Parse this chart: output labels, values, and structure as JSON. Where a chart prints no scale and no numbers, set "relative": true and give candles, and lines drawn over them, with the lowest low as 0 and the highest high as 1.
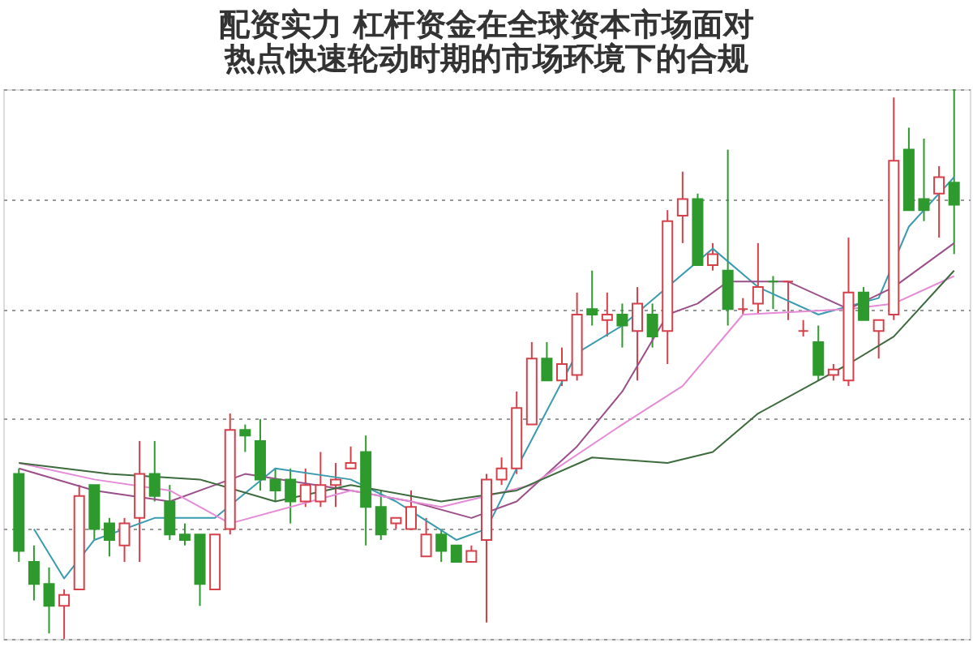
{
  "chart_data": {
    "type": "candlestick",
    "relative": true,
    "grid": "y",
    "title": "配资实力 杠杆资金在全球资本市场面对热点快速轮动时期的市场环境下的合规",
    "categories": [
      null,
      null,
      null,
      null,
      null,
      null,
      null,
      null,
      null,
      null,
      null,
      null,
      null,
      null,
      null,
      null,
      null,
      null,
      null,
      null,
      null,
      null,
      null,
      null,
      null,
      null,
      null,
      null,
      null,
      null,
      null,
      null,
      null,
      null,
      null,
      null,
      null,
      null,
      null,
      null,
      null,
      null,
      null,
      null,
      null,
      null,
      null,
      null,
      null,
      null,
      null,
      null,
      null,
      null,
      null,
      null,
      null,
      null,
      null,
      null,
      null,
      null,
      null
    ],
    "ohlc": [
      [
        0.3,
        0.31,
        0.14,
        0.16
      ],
      [
        0.14,
        0.17,
        0.07,
        0.1
      ],
      [
        0.1,
        0.13,
        0.01,
        0.06
      ],
      [
        0.06,
        0.09,
        0,
        0.08
      ],
      [
        0.09,
        0.28,
        0.09,
        0.26
      ],
      [
        0.28,
        0.28,
        0.18,
        0.2
      ],
      [
        0.21,
        0.22,
        0.15,
        0.18
      ],
      [
        0.17,
        0.22,
        0.14,
        0.21
      ],
      [
        0.22,
        0.36,
        0.14,
        0.3
      ],
      [
        0.3,
        0.36,
        0.25,
        0.26
      ],
      [
        0.25,
        0.28,
        0.18,
        0.19
      ],
      [
        0.19,
        0.21,
        0.17,
        0.18
      ],
      [
        0.19,
        0.19,
        0.06,
        0.1
      ],
      [
        0.09,
        0.19,
        0.09,
        0.19
      ],
      [
        0.2,
        0.41,
        0.19,
        0.38
      ],
      [
        0.38,
        0.39,
        0.34,
        0.37
      ],
      [
        0.36,
        0.4,
        0.27,
        0.29
      ],
      [
        0.29,
        0.31,
        0.25,
        0.27
      ],
      [
        0.29,
        0.31,
        0.21,
        0.25
      ],
      [
        0.25,
        0.31,
        0.24,
        0.28
      ],
      [
        0.25,
        0.34,
        0.24,
        0.28
      ],
      [
        0.28,
        0.32,
        0.24,
        0.29
      ],
      [
        0.31,
        0.35,
        0.31,
        0.32
      ],
      [
        0.34,
        0.37,
        0.17,
        0.24
      ],
      [
        0.24,
        0.27,
        0.18,
        0.19
      ],
      [
        0.21,
        0.22,
        0.2,
        0.22
      ],
      [
        0.2,
        0.27,
        0.2,
        0.24
      ],
      [
        0.15,
        0.22,
        0.15,
        0.19
      ],
      [
        0.19,
        0.2,
        0.14,
        0.16
      ],
      [
        0.17,
        0.17,
        0.14,
        0.14
      ],
      [
        0.14,
        0.17,
        0.14,
        0.16
      ],
      [
        0.18,
        0.3,
        0.03,
        0.29
      ],
      [
        0.29,
        0.33,
        0.28,
        0.31
      ],
      [
        0.31,
        0.45,
        0.3,
        0.42
      ],
      [
        0.39,
        0.54,
        0.39,
        0.51
      ],
      [
        0.51,
        0.54,
        0.47,
        0.47
      ],
      [
        0.47,
        0.53,
        0.46,
        0.5
      ],
      [
        0.48,
        0.63,
        0.47,
        0.59
      ],
      [
        0.6,
        0.67,
        0.57,
        0.59
      ],
      [
        0.58,
        0.63,
        0.55,
        0.59
      ],
      [
        0.59,
        0.61,
        0.53,
        0.57
      ],
      [
        0.56,
        0.64,
        0.47,
        0.61
      ],
      [
        0.59,
        0.61,
        0.53,
        0.55
      ],
      [
        0.56,
        0.78,
        0.5,
        0.76
      ],
      [
        0.77,
        0.85,
        0.72,
        0.8
      ],
      [
        0.8,
        0.81,
        0.68,
        0.68
      ],
      [
        0.68,
        0.72,
        0.67,
        0.7
      ],
      [
        0.67,
        0.89,
        0.57,
        0.6
      ],
      [
        0.6,
        0.62,
        0.59,
        0.6
      ],
      [
        0.61,
        0.72,
        0.59,
        0.64
      ],
      [
        0.65,
        0.66,
        0.6,
        0.65
      ],
      [
        0.65,
        0.65,
        0.58,
        0.65
      ],
      [
        0.56,
        0.58,
        0.55,
        0.56
      ],
      [
        0.54,
        0.57,
        0.47,
        0.48
      ],
      [
        0.48,
        0.5,
        0.47,
        0.49
      ],
      [
        0.47,
        0.73,
        0.46,
        0.63
      ],
      [
        0.63,
        0.64,
        0.58,
        0.58
      ],
      [
        0.56,
        0.58,
        0.51,
        0.58
      ],
      [
        0.59,
        0.985,
        0.58,
        0.87
      ],
      [
        0.89,
        0.93,
        0.78,
        0.78
      ],
      [
        0.8,
        0.91,
        0.76,
        0.78
      ],
      [
        0.81,
        0.86,
        0.73,
        0.84
      ],
      [
        0.83,
        1.0,
        0.7,
        0.79
      ]
    ],
    "colors": [
      "#2e9a2e",
      "#2e9a2e",
      "#2e9a2e",
      "#d6404a",
      "#d6404a",
      "#2e9a2e",
      "#2e9a2e",
      "#d6404a",
      "#d6404a",
      "#2e9a2e",
      "#2e9a2e",
      "#2e9a2e",
      "#2e9a2e",
      "#d6404a",
      "#d6404a",
      "#2e9a2e",
      "#2e9a2e",
      "#2e9a2e",
      "#2e9a2e",
      "#d6404a",
      "#d6404a",
      "#d6404a",
      "#d6404a",
      "#2e9a2e",
      "#2e9a2e",
      "#d6404a",
      "#d6404a",
      "#d6404a",
      "#2e9a2e",
      "#2e9a2e",
      "#d6404a",
      "#d6404a",
      "#d6404a",
      "#d6404a",
      "#d6404a",
      "#2e9a2e",
      "#d6404a",
      "#d6404a",
      "#2e9a2e",
      "#d6404a",
      "#2e9a2e",
      "#d6404a",
      "#2e9a2e",
      "#d6404a",
      "#d6404a",
      "#2e9a2e",
      "#d6404a",
      "#2e9a2e",
      "#d6404a",
      "#d6404a",
      "#2e9a2e",
      "#d6404a",
      "#d6404a",
      "#2e9a2e",
      "#d6404a",
      "#d6404a",
      "#2e9a2e",
      "#d6404a",
      "#d6404a",
      "#2e9a2e",
      "#2e9a2e",
      "#d6404a",
      "#2e9a2e"
    ],
    "series": [
      {
        "type": "line",
        "color": "#3a9bb0",
        "values": [
          null,
          0.2,
          null,
          0.11,
          null,
          0.18,
          null,
          null,
          null,
          0.22,
          null,
          null,
          null,
          0.22,
          null,
          null,
          null,
          0.31,
          null,
          null,
          null,
          null,
          0.29,
          null,
          null,
          0.25,
          null,
          null,
          null,
          0.18,
          null,
          0.2,
          null,
          0.31,
          null,
          null,
          null,
          0.52,
          null,
          null,
          0.57,
          null,
          null,
          0.64,
          null,
          null,
          0.71,
          null,
          null,
          0.64,
          null,
          null,
          null,
          0.59,
          null,
          null,
          null,
          0.62,
          null,
          0.75,
          null,
          null,
          0.84
        ]
      },
      {
        "type": "line",
        "color": "#9b4f8a",
        "values": [
          0.31,
          null,
          null,
          null,
          null,
          0.27,
          null,
          null,
          null,
          null,
          0.25,
          null,
          null,
          null,
          null,
          0.3,
          null,
          null,
          null,
          null,
          null,
          null,
          0.27,
          null,
          null,
          null,
          0.25,
          null,
          null,
          null,
          0.22,
          null,
          null,
          0.25,
          null,
          null,
          null,
          0.35,
          null,
          null,
          0.45,
          null,
          null,
          0.59,
          null,
          0.61,
          null,
          0.65,
          null,
          null,
          null,
          0.65,
          null,
          null,
          null,
          0.6,
          null,
          null,
          0.64,
          null,
          null,
          null,
          0.72
        ]
      },
      {
        "type": "line",
        "color": "#e58ad6",
        "values": [
          0.32,
          null,
          null,
          null,
          null,
          0.29,
          null,
          null,
          null,
          null,
          0.27,
          null,
          null,
          null,
          0.21,
          null,
          null,
          null,
          null,
          null,
          null,
          null,
          0.27,
          null,
          null,
          null,
          null,
          null,
          0.24,
          null,
          null,
          null,
          null,
          null,
          0.28,
          null,
          null,
          null,
          null,
          null,
          0.39,
          null,
          null,
          null,
          0.46,
          null,
          null,
          null,
          0.59,
          null,
          null,
          null,
          null,
          null,
          null,
          0.6,
          null,
          null,
          0.61,
          null,
          null,
          null,
          0.66
        ]
      },
      {
        "type": "line",
        "color": "#3d6b3d",
        "values": [
          0.32,
          null,
          null,
          null,
          null,
          null,
          0.3,
          null,
          null,
          null,
          null,
          null,
          0.29,
          null,
          null,
          null,
          null,
          0.25,
          null,
          null,
          null,
          null,
          0.28,
          null,
          null,
          null,
          null,
          null,
          0.25,
          null,
          null,
          null,
          null,
          0.27,
          null,
          null,
          null,
          null,
          0.33,
          null,
          null,
          null,
          null,
          0.32,
          null,
          null,
          0.34,
          null,
          null,
          0.41,
          null,
          null,
          null,
          null,
          null,
          0.5,
          null,
          null,
          0.55,
          null,
          null,
          null,
          0.67
        ]
      }
    ]
  }
}
